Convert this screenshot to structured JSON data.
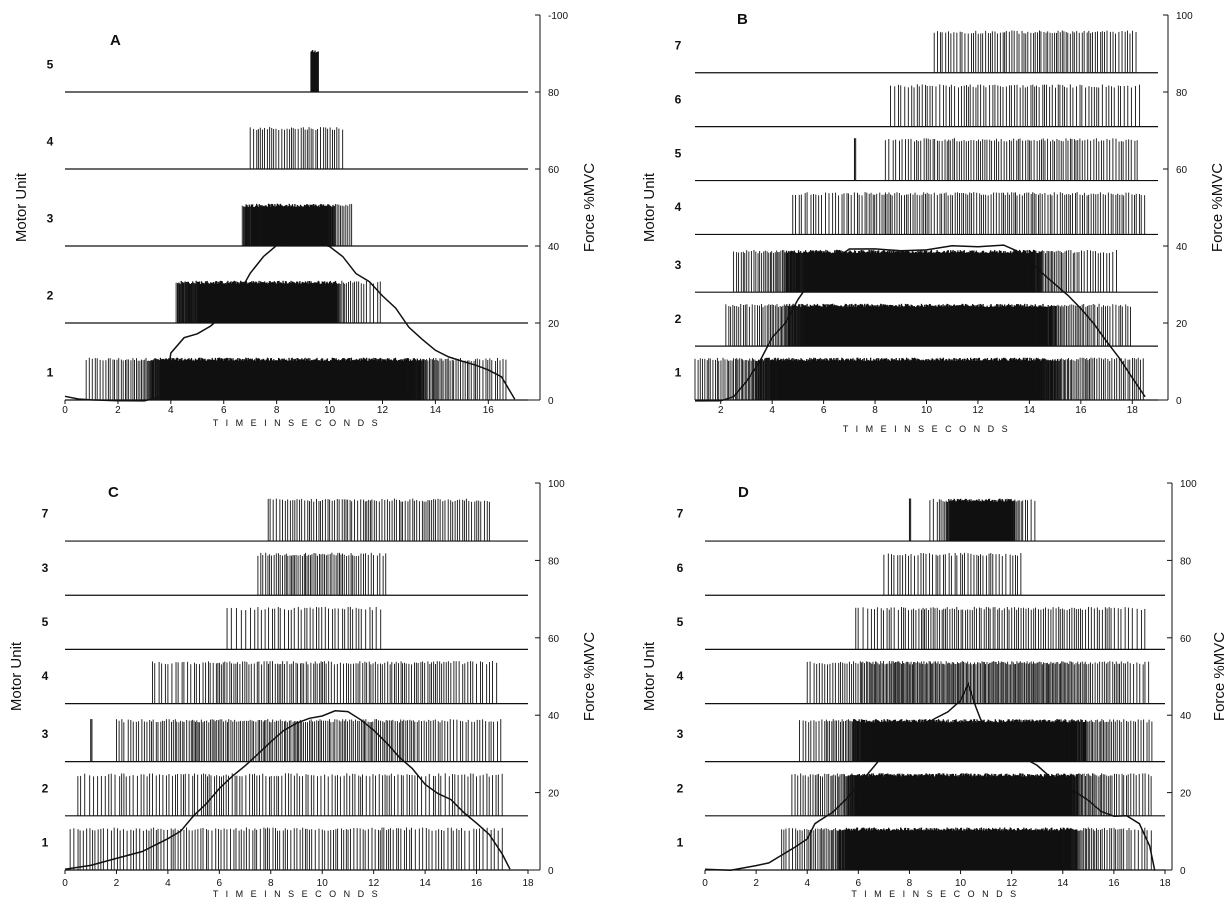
{
  "figure": {
    "title": "",
    "ink_color": "#111111",
    "background": "#ffffff"
  },
  "chart_data": [
    {
      "type": "raster",
      "panel_label": "A",
      "xlabel": "T I M E   I N   S E C O N D S",
      "ylabel_left": "Motor Unit",
      "ylabel_right": "Force %MVC",
      "xlim": [
        0,
        17.5
      ],
      "ylim_right": [
        0,
        100
      ],
      "x_ticks": [
        "0",
        "2",
        "4",
        "6",
        "8",
        "10",
        "12",
        "14",
        "16"
      ],
      "y_ticks_right": [
        "0",
        "20",
        "40",
        "60",
        "80",
        "100"
      ],
      "y_ticks_right_prefixed_top": "-100",
      "units": [
        {
          "label": "1",
          "baseline_force": 0,
          "segments": [
            [
              0.8,
              16.8
            ]
          ],
          "density": [
            0.6,
            1.0,
            0.5
          ]
        },
        {
          "label": "2",
          "baseline_force": 20,
          "segments": [
            [
              4.2,
              12.0
            ]
          ],
          "density": [
            0.9,
            1.0,
            0.4
          ]
        },
        {
          "label": "3",
          "baseline_force": 40,
          "segments": [
            [
              6.7,
              10.9
            ]
          ],
          "density": [
            0.9,
            1.0,
            0.7
          ]
        },
        {
          "label": "4",
          "baseline_force": 60,
          "segments": [
            [
              7.0,
              10.5
            ]
          ],
          "density": [
            0.6,
            0.7,
            0.5
          ]
        },
        {
          "label": "5",
          "baseline_force": 80,
          "segments": [
            [
              9.3,
              9.6
            ]
          ],
          "density": [
            1.0,
            1.0,
            1.0
          ]
        }
      ],
      "force": {
        "x": [
          0,
          0.5,
          1,
          2,
          3,
          3.8,
          4.0,
          4.5,
          5.0,
          5.5,
          6.0,
          6.5,
          7.0,
          7.5,
          8.0,
          8.5,
          9.0,
          9.5,
          10.0,
          10.5,
          11.0,
          11.5,
          12.0,
          12.5,
          13.0,
          13.5,
          14.0,
          14.5,
          15.0,
          15.5,
          16.0,
          16.5,
          17.0
        ],
        "y": [
          1,
          0,
          0,
          0,
          0,
          1,
          12,
          16,
          17,
          19,
          22,
          27,
          33,
          37,
          40,
          41,
          41,
          41,
          40,
          37,
          33,
          31,
          27,
          24,
          19,
          16,
          13,
          11,
          10,
          9,
          8,
          6,
          0
        ]
      }
    },
    {
      "type": "raster",
      "panel_label": "B",
      "xlabel": "T I M E   I N   S E C O N D S",
      "ylabel_left": "Motor Unit",
      "ylabel_right": "Force %MVC",
      "xlim": [
        1,
        19
      ],
      "ylim_right": [
        0,
        100
      ],
      "x_ticks": [
        "2",
        "4",
        "6",
        "8",
        "10",
        "12",
        "14",
        "16",
        "18"
      ],
      "y_ticks_right": [
        "0",
        "20",
        "40",
        "60",
        "80",
        "100"
      ],
      "units": [
        {
          "label": "1",
          "baseline_force": 0,
          "segments": [
            [
              1.0,
              18.5
            ]
          ],
          "density": [
            0.7,
            1.0,
            0.6
          ]
        },
        {
          "label": "2",
          "baseline_force": 14,
          "segments": [
            [
              2.2,
              18.0
            ]
          ],
          "density": [
            0.6,
            1.0,
            0.6
          ]
        },
        {
          "label": "3",
          "baseline_force": 28,
          "segments": [
            [
              2.5,
              17.5
            ]
          ],
          "density": [
            0.7,
            1.0,
            0.5
          ]
        },
        {
          "label": "4",
          "baseline_force": 43,
          "segments": [
            [
              4.8,
              18.5
            ]
          ],
          "density": [
            0.5,
            0.7,
            0.6
          ]
        },
        {
          "label": "5",
          "baseline_force": 57,
          "segments": [
            [
              7.2,
              7.25
            ],
            [
              8.4,
              18.2
            ]
          ],
          "density": [
            0.5,
            0.7,
            0.6
          ]
        },
        {
          "label": "6",
          "baseline_force": 71,
          "segments": [
            [
              8.6,
              18.4
            ]
          ],
          "density": [
            0.5,
            0.6,
            0.5
          ]
        },
        {
          "label": "7",
          "baseline_force": 85,
          "segments": [
            [
              10.3,
              18.2
            ]
          ],
          "density": [
            0.6,
            0.7,
            0.6
          ]
        }
      ],
      "force": {
        "x": [
          1,
          2,
          2.5,
          3,
          3.5,
          4,
          4.5,
          5,
          5.5,
          6,
          6.5,
          7,
          8,
          9,
          10,
          11,
          12,
          13,
          13.5,
          14,
          14.5,
          15,
          15.5,
          16,
          16.5,
          17,
          17.5,
          18,
          18.5
        ],
        "y": [
          0,
          0,
          1,
          5,
          10,
          16,
          20,
          26,
          31,
          34,
          37,
          39,
          39,
          39,
          39,
          40,
          40,
          40,
          39,
          36,
          33,
          30,
          27,
          24,
          20,
          15,
          11,
          6,
          1
        ]
      }
    },
    {
      "type": "raster",
      "panel_label": "C",
      "xlabel": "T I M E   I N   S E C O N D S",
      "ylabel_left": "Motor Unit",
      "ylabel_right": "Force %MVC",
      "xlim": [
        0,
        18
      ],
      "ylim_right": [
        0,
        100
      ],
      "x_ticks": [
        "0",
        "2",
        "4",
        "6",
        "8",
        "10",
        "12",
        "14",
        "16",
        "18"
      ],
      "y_ticks_right": [
        "0",
        "20",
        "40",
        "60",
        "80",
        "100"
      ],
      "units": [
        {
          "label": "1",
          "baseline_force": 0,
          "segments": [
            [
              0.2,
              17.0
            ]
          ],
          "density": [
            0.5,
            0.6,
            0.4
          ]
        },
        {
          "label": "2",
          "baseline_force": 14,
          "segments": [
            [
              0.5,
              17.0
            ]
          ],
          "density": [
            0.4,
            0.6,
            0.4
          ]
        },
        {
          "label": "3",
          "baseline_force": 28,
          "segments": [
            [
              1.0,
              1.05
            ],
            [
              2.0,
              17.0
            ]
          ],
          "density": [
            0.5,
            0.8,
            0.5
          ]
        },
        {
          "label": "4",
          "baseline_force": 43,
          "segments": [
            [
              3.4,
              16.8
            ]
          ],
          "density": [
            0.5,
            0.7,
            0.5
          ]
        },
        {
          "label": "5",
          "baseline_force": 57,
          "segments": [
            [
              6.3,
              12.5
            ]
          ],
          "density": [
            0.4,
            0.5,
            0.3
          ]
        },
        {
          "label": "3",
          "baseline_force": 71,
          "segments": [
            [
              7.5,
              12.5
            ]
          ],
          "density": [
            0.6,
            0.8,
            0.4
          ]
        },
        {
          "label": "7",
          "baseline_force": 85,
          "segments": [
            [
              7.9,
              16.5
            ]
          ],
          "density": [
            0.6,
            0.7,
            0.5
          ]
        }
      ],
      "force": {
        "x": [
          0,
          1,
          2,
          3,
          4,
          4.5,
          5,
          5.5,
          6,
          6.5,
          7,
          7.5,
          8,
          8.5,
          9,
          9.5,
          10,
          10.5,
          11,
          11.5,
          12,
          12.5,
          13,
          13.5,
          14,
          14.5,
          15,
          15.5,
          16,
          16.5,
          17,
          17.3
        ],
        "y": [
          0,
          1,
          3,
          5,
          8,
          10,
          14,
          17,
          21,
          24,
          27,
          30,
          33,
          36,
          38,
          39,
          40,
          41,
          41,
          39,
          36,
          33,
          29,
          26,
          22,
          20,
          18,
          15,
          12,
          9,
          4,
          0
        ]
      }
    },
    {
      "type": "raster",
      "panel_label": "D",
      "xlabel": "T I M E   I N   S E C O N D S",
      "ylabel_left": "Motor Unit",
      "ylabel_right": "Force %MVC",
      "xlim": [
        0,
        18
      ],
      "ylim_right": [
        0,
        100
      ],
      "x_ticks": [
        "0",
        "2",
        "4",
        "6",
        "8",
        "10",
        "12",
        "14",
        "16",
        "18"
      ],
      "y_ticks_right": [
        "0",
        "20",
        "40",
        "60",
        "80",
        "100"
      ],
      "units": [
        {
          "label": "1",
          "baseline_force": 0,
          "segments": [
            [
              3.0,
              17.5
            ]
          ],
          "density": [
            0.6,
            1.0,
            0.5
          ]
        },
        {
          "label": "2",
          "baseline_force": 14,
          "segments": [
            [
              3.4,
              17.5
            ]
          ],
          "density": [
            0.6,
            1.0,
            0.5
          ]
        },
        {
          "label": "3",
          "baseline_force": 28,
          "segments": [
            [
              3.7,
              17.5
            ]
          ],
          "density": [
            0.6,
            1.0,
            0.6
          ]
        },
        {
          "label": "4",
          "baseline_force": 43,
          "segments": [
            [
              4.0,
              17.5
            ]
          ],
          "density": [
            0.5,
            0.9,
            0.5
          ]
        },
        {
          "label": "5",
          "baseline_force": 57,
          "segments": [
            [
              5.9,
              17.3
            ]
          ],
          "density": [
            0.3,
            0.7,
            0.4
          ]
        },
        {
          "label": "6",
          "baseline_force": 71,
          "segments": [
            [
              7.0,
              12.5
            ]
          ],
          "density": [
            0.5,
            0.6,
            0.4
          ]
        },
        {
          "label": "7",
          "baseline_force": 85,
          "segments": [
            [
              8.0,
              8.05
            ],
            [
              8.8,
              13.0
            ]
          ],
          "density": [
            0.5,
            1.0,
            0.4
          ]
        }
      ],
      "force": {
        "x": [
          0,
          1,
          2,
          2.5,
          3,
          3.5,
          4,
          4.3,
          4.5,
          5,
          5.5,
          6,
          6.5,
          7,
          7.5,
          8,
          8.5,
          9,
          9.5,
          10,
          10.3,
          10.6,
          11,
          11.3,
          11.6,
          12,
          12.5,
          13,
          13.5,
          14,
          14.5,
          15,
          15.5,
          16,
          16.5,
          17,
          17.4,
          17.6
        ],
        "y": [
          0,
          0,
          1,
          2,
          4,
          6,
          8,
          12,
          13,
          15,
          18,
          22,
          26,
          30,
          33,
          36,
          37,
          39,
          41,
          44,
          48,
          42,
          35,
          38,
          32,
          30,
          29,
          27,
          24,
          21,
          20,
          18,
          15,
          14,
          14,
          12,
          6,
          0
        ]
      }
    }
  ]
}
